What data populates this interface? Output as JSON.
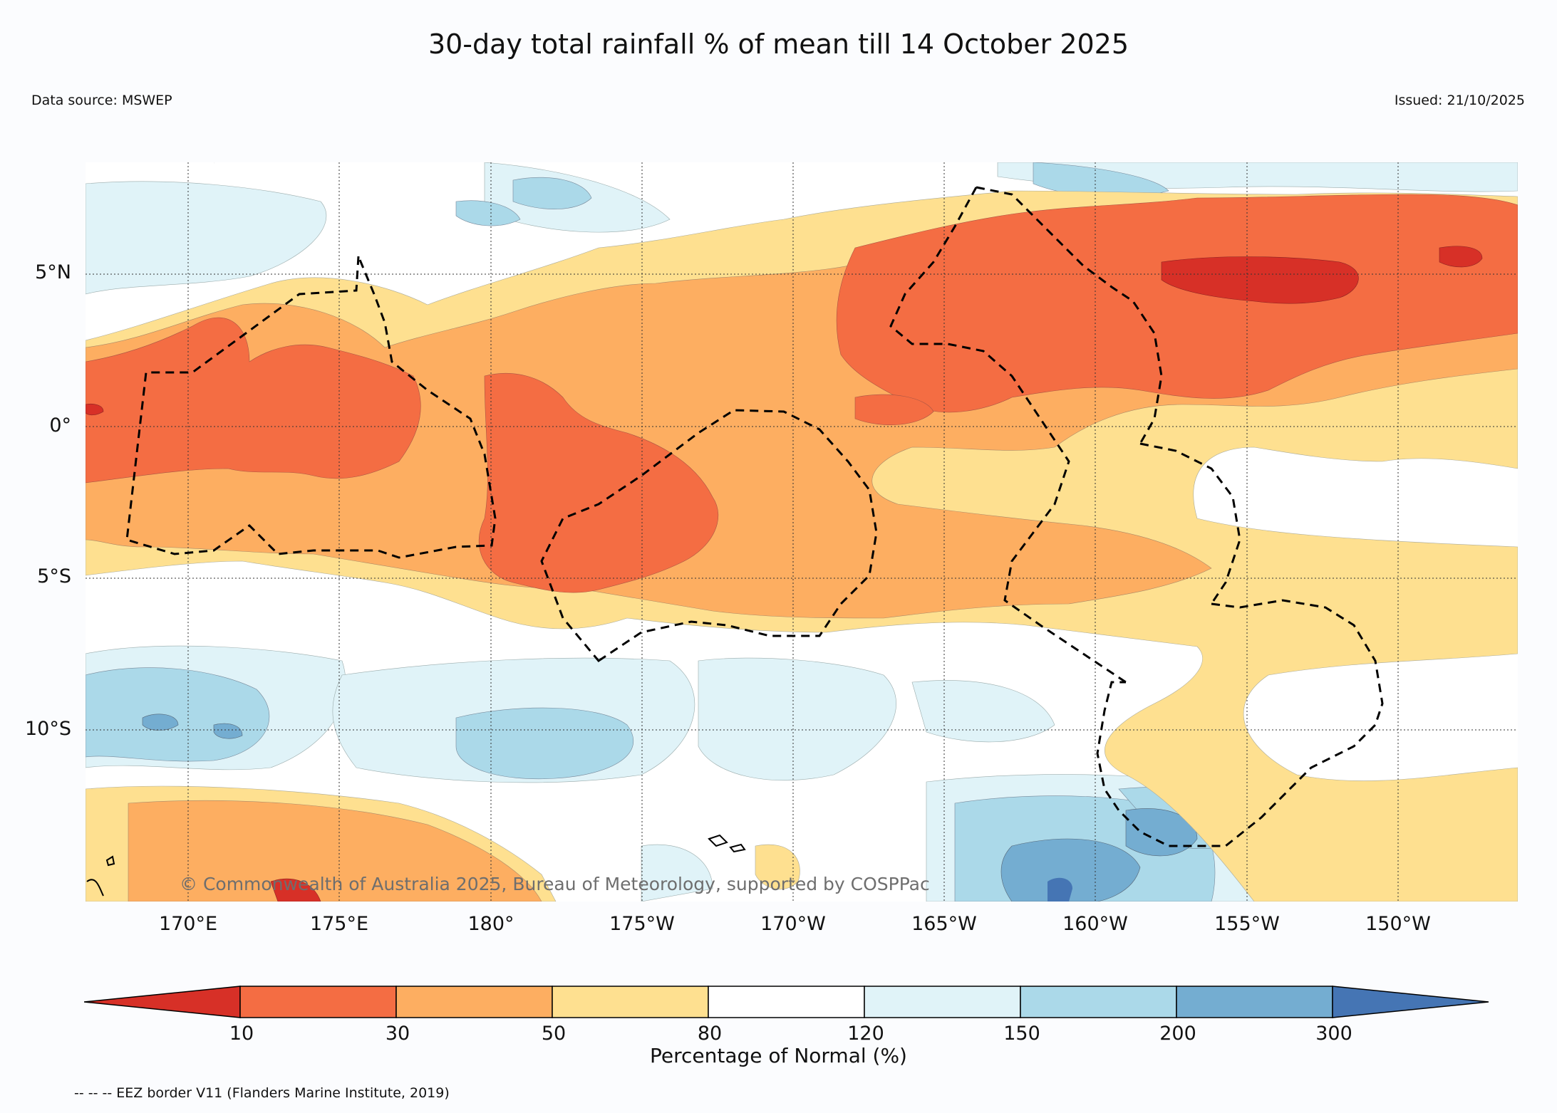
{
  "title": "30-day total rainfall % of mean till 14 October 2025",
  "data_source": "Data source: MSWEP",
  "issued": "Issued: 21/10/2025",
  "copyright": "© Commonwealth of Australia 2025, Bureau of Meteorology, supported by COSPPac",
  "lat_labels": [
    "5°N",
    "0°",
    "5°S",
    "10°S"
  ],
  "lon_labels": [
    "170°E",
    "175°E",
    "180°",
    "175°W",
    "170°W",
    "165°W",
    "160°W",
    "155°W",
    "150°W"
  ],
  "colorbar": {
    "title": "Percentage of Normal (%)",
    "ticks": [
      "10",
      "30",
      "50",
      "80",
      "120",
      "150",
      "200",
      "300"
    ],
    "colors": [
      "#d73027",
      "#f46d43",
      "#fdae61",
      "#fee090",
      "#ffffff",
      "#e0f3f8",
      "#abd9e9",
      "#74add1",
      "#4575b4"
    ]
  },
  "eez_note": "-- -- -- EEZ border V11 (Flanders Marine Institute, 2019)"
}
